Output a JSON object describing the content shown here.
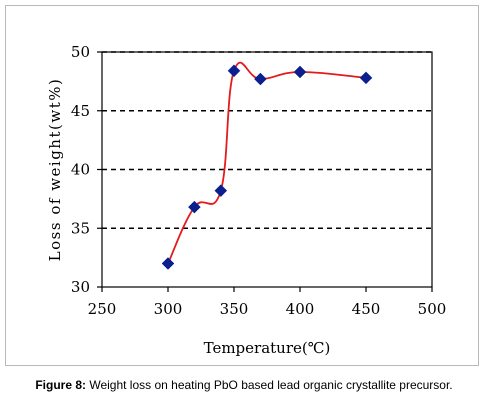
{
  "chart_data": {
    "type": "line",
    "xlabel": "Temperature(℃)",
    "ylabel": "Loss of weight(wt%)",
    "xlim": [
      250,
      500
    ],
    "ylim": [
      30,
      50
    ],
    "x_ticks": [
      250,
      300,
      350,
      400,
      450,
      500
    ],
    "y_ticks": [
      30,
      35,
      40,
      45,
      50
    ],
    "grid": "horizontal dashed",
    "legend": "none",
    "line_color": "#e41a1c",
    "marker_color": "#0b1f8f",
    "marker": "diamond",
    "smooth": true,
    "series": [
      {
        "x": [
          300,
          320,
          340,
          350,
          370,
          400,
          450
        ],
        "y": [
          32.0,
          36.8,
          38.2,
          48.4,
          47.7,
          48.3,
          47.8
        ]
      }
    ]
  },
  "caption": {
    "label": "Figure 8:",
    "text": " Weight loss on heating PbO based lead organic crystallite precursor."
  }
}
